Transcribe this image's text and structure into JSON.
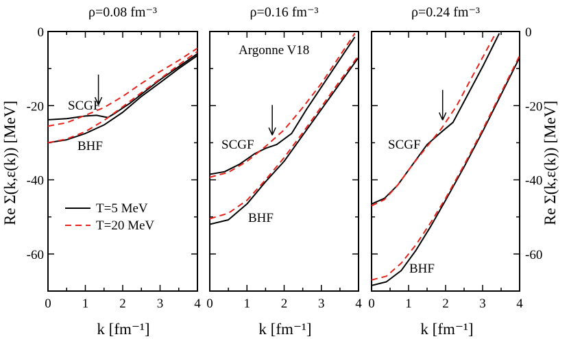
{
  "chart_data": {
    "type": "line",
    "xlabel": "k [fm⁻¹]",
    "ylabel": "Re Σ(k,ε(k))  [MeV]",
    "xlim": [
      0,
      4
    ],
    "ylim": [
      -70,
      0
    ],
    "xticks": [
      "0",
      "1",
      "2",
      "3",
      "4"
    ],
    "yticks": [
      "0",
      "-20",
      "-40",
      "-60"
    ],
    "legend": [
      {
        "label": "T=5 MeV",
        "color": "#000000",
        "dash": "solid"
      },
      {
        "label": "T=20 MeV",
        "color": "#e8221a",
        "dash": "dashed"
      }
    ],
    "panels": [
      {
        "title": "ρ=0.08 fm⁻³",
        "annotations": [
          {
            "text": "SCGF"
          },
          {
            "text": "BHF"
          }
        ],
        "arrow_k": 1.35,
        "series": [
          {
            "name": "SCGF T=5 MeV",
            "style": "solid",
            "x": [
              0,
              0.5,
              1.0,
              1.3,
              1.6,
              1.8,
              2.2,
              3.0,
              4.0
            ],
            "y": [
              -23.8,
              -23.5,
              -22.8,
              -22.6,
              -23.2,
              -22.0,
              -19.3,
              -13.0,
              -6.0
            ]
          },
          {
            "name": "SCGF T=20 MeV",
            "style": "dashed",
            "x": [
              0,
              0.5,
              1.0,
              1.5,
              2.0,
              2.5,
              3.0,
              3.5,
              4.0
            ],
            "y": [
              -25.5,
              -24.6,
              -22.6,
              -20.5,
              -17.5,
              -14.0,
              -10.8,
              -7.8,
              -4.5
            ]
          },
          {
            "name": "BHF T=5 MeV",
            "style": "solid",
            "x": [
              0,
              0.5,
              1.0,
              1.5,
              2.0,
              2.5,
              3.0,
              3.5,
              4.0
            ],
            "y": [
              -30.0,
              -29.2,
              -27.5,
              -25.2,
              -21.8,
              -17.5,
              -13.8,
              -10.0,
              -6.5
            ]
          },
          {
            "name": "BHF T=20 MeV",
            "style": "dashed",
            "x": [
              0,
              0.5,
              1.0,
              1.5,
              2.0,
              2.5,
              3.0,
              3.5,
              4.0
            ],
            "y": [
              -30.0,
              -29.0,
              -27.0,
              -24.0,
              -20.3,
              -16.5,
              -12.8,
              -9.0,
              -5.4
            ]
          }
        ]
      },
      {
        "title": "ρ=0.16 fm⁻³",
        "annotations": [
          {
            "text": "Argonne V18"
          },
          {
            "text": "SCGF"
          },
          {
            "text": "BHF"
          }
        ],
        "arrow_k": 1.68,
        "series": [
          {
            "name": "SCGF T=5 MeV",
            "style": "solid",
            "x": [
              0,
              0.4,
              0.8,
              1.2,
              1.5,
              1.8,
              2.2,
              2.6,
              3.0,
              3.5,
              3.9
            ],
            "y": [
              -38.5,
              -37.8,
              -35.8,
              -33.0,
              -31.5,
              -30.5,
              -27.5,
              -21.0,
              -15.0,
              -7.5,
              -1.5
            ]
          },
          {
            "name": "SCGF T=20 MeV",
            "style": "dashed",
            "x": [
              0,
              0.5,
              1.0,
              1.5,
              2.0,
              2.5,
              3.0,
              3.5,
              3.9
            ],
            "y": [
              -39.3,
              -38.0,
              -35.0,
              -31.0,
              -26.5,
              -20.5,
              -14.0,
              -6.5,
              -0.5
            ]
          },
          {
            "name": "BHF T=5 MeV",
            "style": "solid",
            "x": [
              0,
              0.5,
              1.0,
              1.5,
              2.0,
              2.5,
              3.0,
              3.5,
              4.0
            ],
            "y": [
              -52.0,
              -50.8,
              -46.5,
              -40.5,
              -35.0,
              -28.0,
              -21.0,
              -14.0,
              -7.0
            ]
          },
          {
            "name": "BHF T=20 MeV",
            "style": "dashed",
            "x": [
              0,
              0.5,
              1.0,
              1.5,
              2.0,
              2.5,
              3.0,
              3.5,
              4.0
            ],
            "y": [
              -50.5,
              -49.0,
              -45.5,
              -40.0,
              -34.0,
              -27.3,
              -20.3,
              -13.3,
              -6.5
            ]
          }
        ]
      },
      {
        "title": "ρ=0.24 fm⁻³",
        "annotations": [
          {
            "text": "SCGF"
          },
          {
            "text": "BHF"
          }
        ],
        "arrow_k": 1.92,
        "series": [
          {
            "name": "SCGF T=5 MeV",
            "style": "solid",
            "x": [
              0,
              0.35,
              0.7,
              1.1,
              1.5,
              1.9,
              2.2,
              2.6,
              3.0,
              3.3,
              3.45
            ],
            "y": [
              -46.5,
              -45.0,
              -41.5,
              -36.0,
              -30.5,
              -27.0,
              -24.5,
              -17.0,
              -9.5,
              -3.5,
              -0.5
            ]
          },
          {
            "name": "SCGF T=20 MeV",
            "style": "dashed",
            "x": [
              0,
              0.35,
              0.7,
              1.1,
              1.5,
              1.9,
              2.3,
              2.7,
              3.0,
              3.35
            ],
            "y": [
              -47.0,
              -45.3,
              -41.5,
              -36.0,
              -31.0,
              -26.0,
              -20.0,
              -12.5,
              -7.0,
              -0.5
            ]
          },
          {
            "name": "BHF T=5 MeV",
            "style": "solid",
            "x": [
              0,
              0.4,
              0.8,
              1.2,
              1.6,
              2.0,
              2.5,
              3.0,
              3.5,
              4.0
            ],
            "y": [
              -68.5,
              -67.5,
              -64.5,
              -59.0,
              -52.5,
              -45.5,
              -36.5,
              -27.0,
              -17.0,
              -7.0
            ]
          },
          {
            "name": "BHF T=20 MeV",
            "style": "dashed",
            "x": [
              0,
              0.4,
              0.8,
              1.2,
              1.6,
              2.0,
              2.5,
              3.0,
              3.5,
              4.0
            ],
            "y": [
              -67.0,
              -66.0,
              -62.5,
              -57.5,
              -51.5,
              -45.0,
              -36.0,
              -26.5,
              -16.5,
              -6.5
            ]
          }
        ]
      }
    ]
  }
}
